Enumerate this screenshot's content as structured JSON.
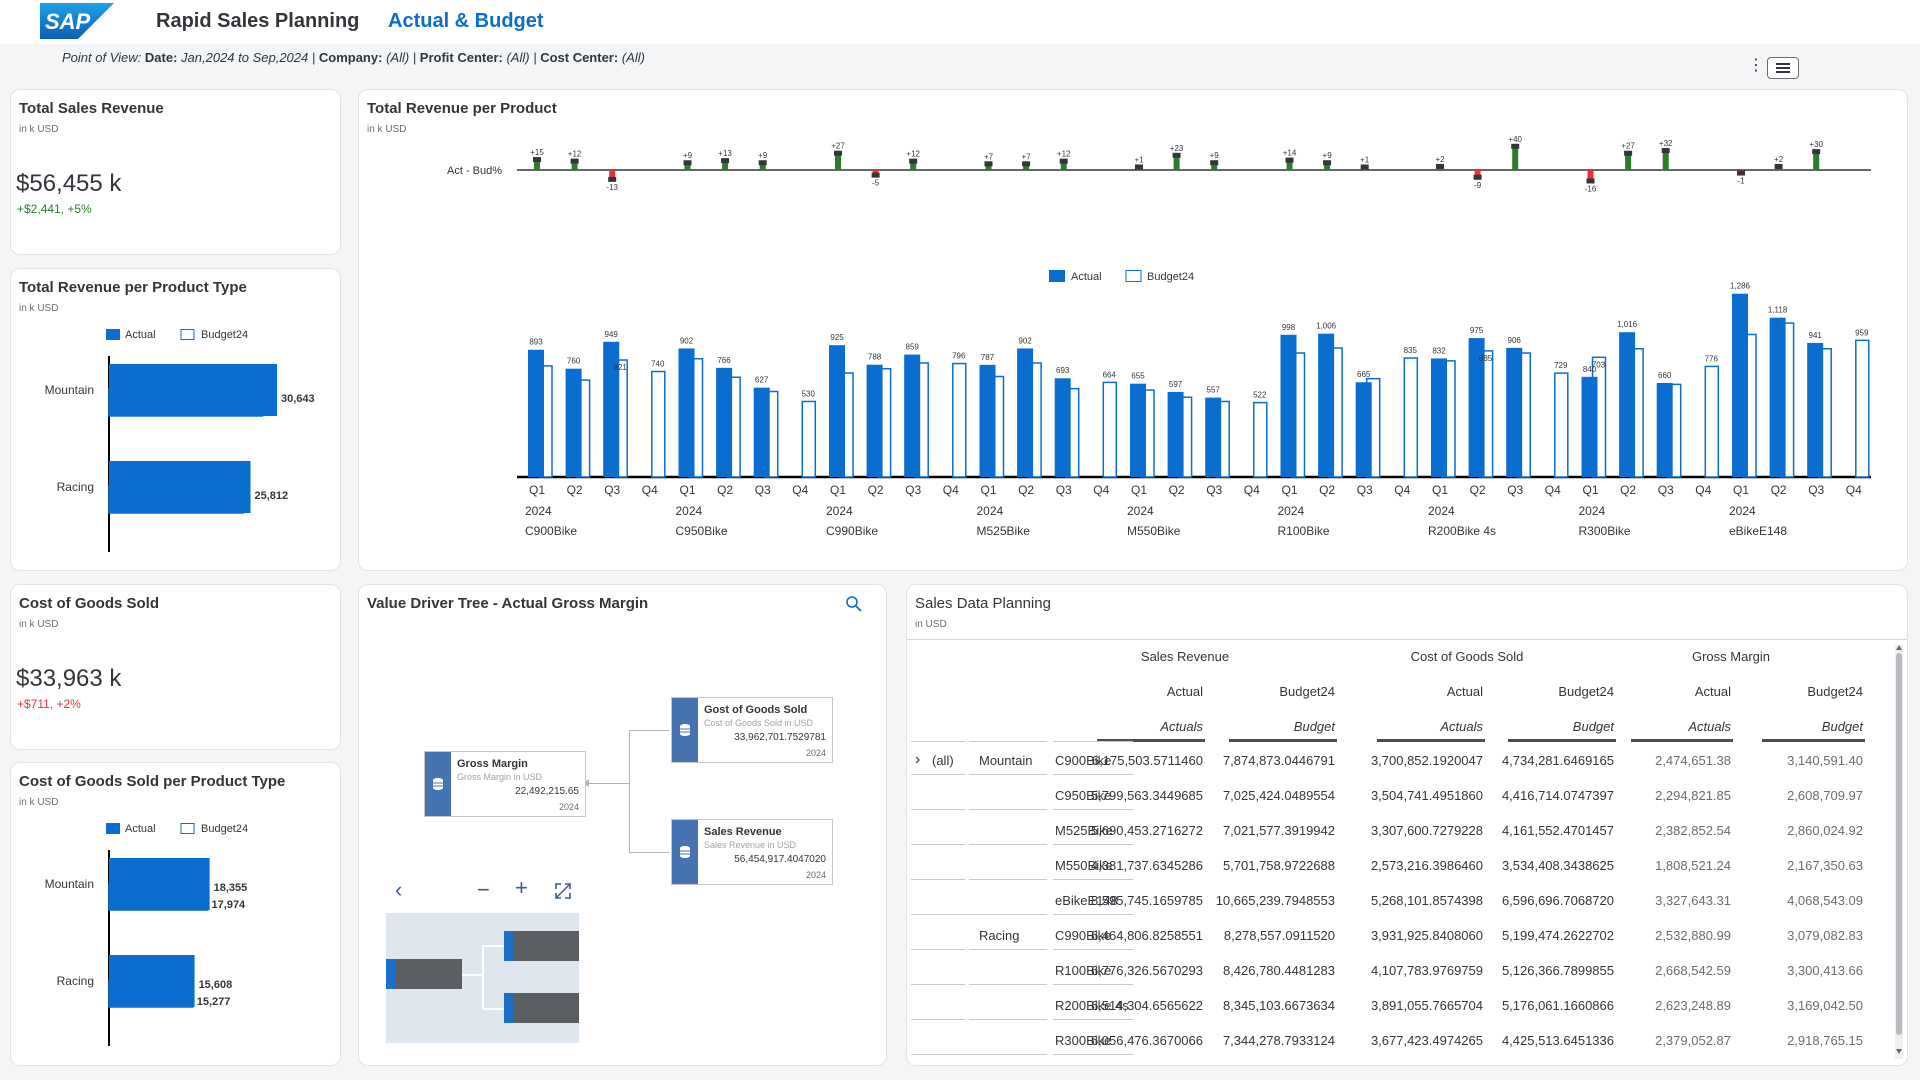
{
  "header": {
    "app_title": "Rapid Sales Planning",
    "page_title": "Actual & Budget",
    "logo_text": "SAP"
  },
  "pov": {
    "prefix": "Point of View:",
    "date_label": "Date:",
    "date_value": "Jan,2024 to Sep,2024",
    "company_label": "Company:",
    "company_value": "(All)",
    "profit_center_label": "Profit Center:",
    "profit_center_value": "(All)",
    "cost_center_label": "Cost Center:",
    "cost_center_value": "(All)"
  },
  "toolbar": {
    "more_icon": "more-vertical-icon",
    "menu_icon": "hamburger-menu-icon"
  },
  "colors": {
    "actual": "#0a6ed1",
    "positive": "#2b7d2b",
    "negative": "#e9303b",
    "accent": "#0a6ed1"
  },
  "kpi_sales": {
    "title": "Total Sales Revenue",
    "unit": "in k USD",
    "value": "$56,455 k",
    "delta": "+$2,441, +5%"
  },
  "kpi_cogs": {
    "title": "Cost of Goods Sold",
    "unit": "in k USD",
    "value": "$33,963 k",
    "delta": "+$711, +2%"
  },
  "rev_type": {
    "title": "Total Revenue per Product Type",
    "unit": "in k USD",
    "legend_actual": "Actual",
    "legend_budget": "Budget24"
  },
  "cogs_type": {
    "title": "Cost of Goods Sold per Product Type",
    "unit": "in k USD",
    "legend_actual": "Actual",
    "legend_budget": "Budget24"
  },
  "rev_product": {
    "title": "Total Revenue per Product",
    "unit": "in k USD",
    "variance_label": "Act - Bud%",
    "legend_actual": "Actual",
    "legend_budget": "Budget24"
  },
  "vdt": {
    "title": "Value Driver Tree - Actual Gross Margin",
    "gm_title": "Gross Margin",
    "gm_sub": "Gross Margin in USD",
    "gm_value": "22,492,215.65",
    "gm_year": "2024",
    "cogs_title": "Gost of Goods Sold",
    "cogs_sub": "Cost of Goods Sold in USD",
    "cogs_value": "33,962,701.7529781",
    "cogs_year": "2024",
    "sr_title": "Sales Revenue",
    "sr_sub": "Sales Revenue in USD",
    "sr_value": "56,454,917.4047020",
    "sr_year": "2024"
  },
  "table": {
    "title": "Sales Data Planning",
    "unit": "in USD",
    "groups": [
      "Sales Revenue",
      "Cost of Goods Sold",
      "Gross Margin"
    ],
    "versions": [
      "Actual",
      "Budget24",
      "Actual",
      "Budget24",
      "Actual",
      "Budget24"
    ],
    "categories": [
      "Actuals",
      "Budget",
      "Actuals",
      "Budget",
      "Actuals",
      "Budget"
    ],
    "all_label": "(all)",
    "rows": [
      {
        "type": "Mountain",
        "product": "C900Bike",
        "vals": [
          "6,175,503.5711460",
          "7,874,873.0446791",
          "3,700,852.1920047",
          "4,734,281.6469165",
          "2,474,651.38",
          "3,140,591.40"
        ]
      },
      {
        "type": "",
        "product": "C950Bike",
        "vals": [
          "5,799,563.3449685",
          "7,025,424.0489554",
          "3,504,741.4951860",
          "4,416,714.0747397",
          "2,294,821.85",
          "2,608,709.97"
        ]
      },
      {
        "type": "",
        "product": "M525Bike",
        "vals": [
          "5,690,453.2716272",
          "7,021,577.3919942",
          "3,307,600.7279228",
          "4,161,552.4701457",
          "2,382,852.54",
          "2,860,024.92"
        ]
      },
      {
        "type": "",
        "product": "M550Bike",
        "vals": [
          "4,381,737.6345286",
          "5,701,758.9722688",
          "2,573,216.3986460",
          "3,534,408.3438625",
          "1,808,521.24",
          "2,167,350.63"
        ]
      },
      {
        "type": "",
        "product": "eBikeE148",
        "vals": [
          "8,595,745.1659785",
          "10,665,239.7948553",
          "5,268,101.8574398",
          "6,596,696.7068720",
          "3,327,643.31",
          "4,068,543.09"
        ]
      },
      {
        "type": "Racing",
        "product": "C990Bike",
        "vals": [
          "6,464,806.8258551",
          "8,278,557.0911520",
          "3,931,925.8408060",
          "5,199,474.2622702",
          "2,532,880.99",
          "3,079,082.83"
        ]
      },
      {
        "type": "",
        "product": "R100Bike",
        "vals": [
          "6,776,326.5670293",
          "8,426,780.4481283",
          "4,107,783.9769759",
          "5,126,366.7899855",
          "2,668,542.59",
          "3,300,413.66"
        ]
      },
      {
        "type": "",
        "product": "R200Bike 4s",
        "vals": [
          "6,514,304.6565622",
          "8,345,103.6673634",
          "3,891,055.7665704",
          "5,176,061.1660866",
          "2,623,248.89",
          "3,169,042.50"
        ]
      },
      {
        "type": "",
        "product": "R300Bike",
        "vals": [
          "6,056,476.3670066",
          "7,344,278.7933124",
          "3,677,423.4974265",
          "4,425,513.6451336",
          "2,379,052.87",
          "2,918,765.15"
        ]
      }
    ]
  },
  "chart_data": [
    {
      "type": "bar",
      "title": "Total Revenue per Product Type",
      "categories": [
        "Mountain",
        "Racing"
      ],
      "series": [
        {
          "name": "Actual",
          "values": [
            30643,
            25812
          ]
        },
        {
          "name": "Budget24",
          "values": [
            28000,
            24500
          ]
        }
      ],
      "data_labels": [
        "30,643",
        "25,812"
      ],
      "orientation": "horizontal"
    },
    {
      "type": "bar",
      "title": "Cost of Goods Sold per Product Type",
      "categories": [
        "Mountain",
        "Racing"
      ],
      "series": [
        {
          "name": "Actual",
          "values": [
            18355,
            15608
          ]
        },
        {
          "name": "Budget24",
          "values": [
            17974,
            15277
          ]
        }
      ],
      "data_labels": [
        [
          "18,355",
          "17,974"
        ],
        [
          "15,608",
          "15,277"
        ]
      ],
      "orientation": "horizontal"
    },
    {
      "type": "bar",
      "title": "Total Revenue per Product",
      "products": [
        "C900Bike",
        "C950Bike",
        "C990Bike",
        "M525Bike",
        "M550Bike",
        "R100Bike",
        "R200Bike 4s",
        "R300Bike",
        "eBikeE148"
      ],
      "quarters": [
        "Q1",
        "Q2",
        "Q3",
        "Q4"
      ],
      "year": "2024",
      "actual": [
        [
          893,
          760,
          949,
          null
        ],
        [
          902,
          766,
          627,
          null
        ],
        [
          925,
          788,
          859,
          null
        ],
        [
          787,
          902,
          693,
          null
        ],
        [
          655,
          597,
          557,
          null
        ],
        [
          998,
          1006,
          665,
          null
        ],
        [
          832,
          975,
          906,
          null
        ],
        [
          703,
          1016,
          660,
          null
        ],
        [
          1286,
          1118,
          941,
          null
        ]
      ],
      "budget": [
        [
          780,
          680,
          821,
          740
        ],
        [
          830,
          700,
          600,
          530
        ],
        [
          730,
          760,
          800,
          796
        ],
        [
          705,
          800,
          620,
          664
        ],
        [
          610,
          560,
          530,
          522
        ],
        [
          870,
          905,
          690,
          835
        ],
        [
          815,
          885,
          870,
          729
        ],
        [
          840,
          900,
          650,
          776
        ],
        [
          1000,
          1080,
          900,
          959
        ]
      ],
      "labels": [
        [
          "893",
          "760",
          "949",
          "740"
        ],
        [
          "902",
          "766",
          "627",
          "530"
        ],
        [
          "925",
          "788",
          "859",
          "796"
        ],
        [
          "787",
          "902",
          "693",
          "664"
        ],
        [
          "655",
          "597",
          "557",
          "522"
        ],
        [
          "998",
          "1,006",
          "665",
          "835"
        ],
        [
          "832",
          "975",
          "906",
          "729"
        ],
        [
          "840",
          "1,016",
          "660",
          "776"
        ],
        [
          "1,286",
          "1,118",
          "941",
          "959"
        ]
      ],
      "extra_labels": [
        [
          "821",
          "C900Bike",
          "Q3"
        ],
        [
          "885",
          "R200Bike 4s",
          "Q2"
        ],
        [
          "703",
          "R300Bike",
          "Q1"
        ]
      ],
      "variance_pct": [
        [
          15,
          12,
          -13,
          null
        ],
        [
          9,
          13,
          9,
          null
        ],
        [
          27,
          -5,
          12,
          null
        ],
        [
          7,
          7,
          12,
          null
        ],
        [
          1,
          23,
          9,
          null
        ],
        [
          14,
          9,
          1,
          null
        ],
        [
          2,
          -9,
          40,
          null
        ],
        [
          -16,
          27,
          32,
          null
        ],
        [
          -1,
          2,
          30,
          null
        ]
      ]
    }
  ]
}
